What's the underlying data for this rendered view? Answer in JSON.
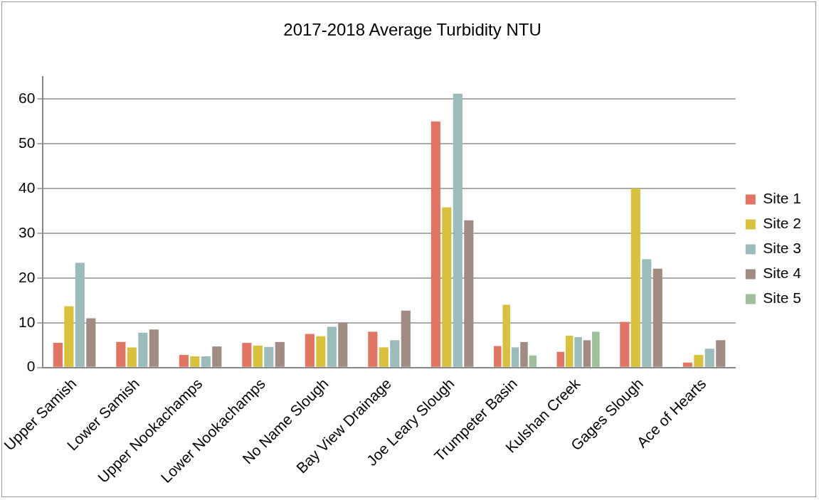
{
  "chart_data": {
    "type": "bar",
    "title": "2017-2018 Average Turbidity NTU",
    "categories": [
      "Upper Samish",
      "Lower Samish",
      "Upper Nookachamps",
      "Lower Nookachamps",
      "No Name Slough",
      "Bay View Drainage",
      "Joe Leary Slough",
      "Trumpeter Basin",
      "Kulshan Creek",
      "Gages Slough",
      "Ace of Hearts"
    ],
    "series": [
      {
        "name": "Site 1",
        "color": "#e07563",
        "values": [
          5.5,
          5.7,
          2.8,
          5.5,
          7.5,
          8.0,
          55,
          4.8,
          3.5,
          10.2,
          1.1
        ]
      },
      {
        "name": "Site 2",
        "color": "#d9c140",
        "values": [
          13.7,
          4.5,
          2.5,
          4.9,
          7.0,
          4.5,
          35.8,
          14.0,
          7.1,
          40,
          2.8
        ]
      },
      {
        "name": "Site 3",
        "color": "#9bbcbb",
        "values": [
          23.4,
          7.8,
          2.5,
          4.6,
          9.1,
          6.1,
          61.2,
          4.5,
          6.8,
          24.2,
          4.2
        ]
      },
      {
        "name": "Site 4",
        "color": "#a08c82",
        "values": [
          11.0,
          8.5,
          4.7,
          5.7,
          10.0,
          12.7,
          32.9,
          5.7,
          6.1,
          22.1,
          6.1
        ]
      },
      {
        "name": "Site 5",
        "color": "#9dbf9b",
        "values": [
          null,
          null,
          null,
          null,
          null,
          null,
          null,
          2.7,
          8.0,
          null,
          null
        ]
      }
    ],
    "ylim": [
      0,
      65
    ],
    "yticks": [
      0,
      10,
      20,
      30,
      40,
      50,
      60
    ],
    "grid": "y",
    "legend": "right"
  }
}
